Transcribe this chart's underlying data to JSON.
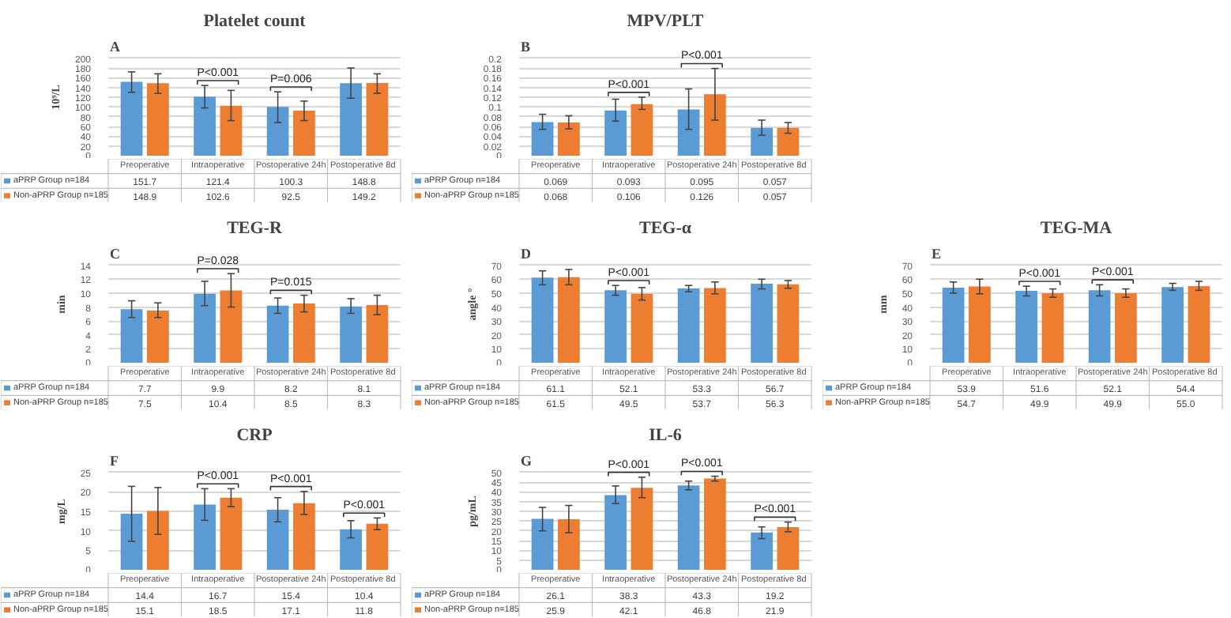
{
  "chart_data": [
    {
      "type": "bar",
      "title": "Platelet count",
      "ylabel": "10⁹/L",
      "categories": [
        "Preoperative",
        "Intraoperative",
        "Postoperative 24h",
        "Postoperative  8d"
      ],
      "series": [
        {
          "name": "aPRP Group n=184",
          "color": "#5b9bd5",
          "values": [
            151.7,
            121.4,
            100.3,
            148.8
          ],
          "errors": [
            [
              130,
              172
            ],
            [
              98,
              144
            ],
            [
              68,
              131
            ],
            [
              118,
              180
            ]
          ]
        },
        {
          "name": "Non-aPRP Group n=185",
          "color": "#ed7d31",
          "values": [
            148.9,
            102.6,
            92.5,
            149.2
          ],
          "errors": [
            [
              128,
              168
            ],
            [
              72,
              134
            ],
            [
              72,
              112
            ],
            [
              128,
              168
            ]
          ]
        }
      ],
      "ylim": [
        0,
        200
      ],
      "yticks": [
        0,
        20,
        40,
        60,
        80,
        100,
        120,
        140,
        160,
        180,
        200
      ],
      "grid": "y",
      "legend": "bottom left",
      "data_labels": true,
      "annotations": [
        "A",
        "P<0.001",
        "P=0.006"
      ]
    },
    {
      "type": "bar",
      "title": "MPV/PLT",
      "categories": [
        "Preoperative",
        "Intraoperative",
        "Postoperative 24h",
        "Postoperative  8d"
      ],
      "series": [
        {
          "name": "aPRP Group n=184",
          "color": "#5b9bd5",
          "values": [
            0.069,
            0.093,
            0.095,
            0.057
          ],
          "errors": [
            [
              0.054,
              0.085
            ],
            [
              0.071,
              0.116
            ],
            [
              0.054,
              0.137
            ],
            [
              0.042,
              0.073
            ]
          ]
        },
        {
          "name": "Non-aPRP Group n=185",
          "color": "#ed7d31",
          "values": [
            0.068,
            0.106,
            0.126,
            0.057
          ],
          "errors": [
            [
              0.055,
              0.082
            ],
            [
              0.095,
              0.12
            ],
            [
              0.073,
              0.179
            ],
            [
              0.046,
              0.068
            ]
          ]
        }
      ],
      "ylim": [
        0,
        0.2
      ],
      "yticks": [
        0,
        0.02,
        0.04,
        0.06,
        0.08,
        0.1,
        0.12,
        0.14,
        0.16,
        0.18,
        0.2
      ],
      "grid": "y",
      "legend": "bottom left",
      "data_labels": true,
      "annotations": [
        "B",
        "P<0.001",
        "P<0.001"
      ]
    },
    {
      "type": "bar",
      "title": "TEG-R",
      "ylabel": "min",
      "categories": [
        "Preoperative",
        "Intraoperative",
        "Postoperative 24h",
        "Postoperative  8d"
      ],
      "series": [
        {
          "name": "aPRP Group n=184",
          "color": "#5b9bd5",
          "values": [
            7.7,
            9.9,
            8.2,
            8.1
          ],
          "errors": [
            [
              6.5,
              8.9
            ],
            [
              8.2,
              11.7
            ],
            [
              7.1,
              9.3
            ],
            [
              7.1,
              9.2
            ]
          ]
        },
        {
          "name": "Non-aPRP Group n=185",
          "color": "#ed7d31",
          "values": [
            7.5,
            10.4,
            8.5,
            8.3
          ],
          "errors": [
            [
              6.5,
              8.6
            ],
            [
              8,
              12.8
            ],
            [
              7.3,
              9.7
            ],
            [
              6.9,
              9.7
            ]
          ]
        }
      ],
      "ylim": [
        0,
        14
      ],
      "yticks": [
        0,
        2,
        4,
        6,
        8,
        10,
        12,
        14
      ],
      "grid": "y",
      "legend": "bottom left",
      "data_labels": true,
      "annotations": [
        "C",
        "P=0.028",
        "P=0.015"
      ]
    },
    {
      "type": "bar",
      "title": "TEG-α",
      "ylabel": "angle °",
      "categories": [
        "Preoperative",
        "Intraoperative",
        "Postoperative 24h",
        "Postoperative  8d"
      ],
      "series": [
        {
          "name": "aPRP Group n=184",
          "color": "#5b9bd5",
          "values": [
            61.1,
            52.1,
            53.3,
            56.7
          ],
          "errors": [
            [
              56,
              66
            ],
            [
              48.5,
              55.5
            ],
            [
              51,
              55.5
            ],
            [
              53,
              60
            ]
          ]
        },
        {
          "name": "Non-aPRP Group n=185",
          "color": "#ed7d31",
          "values": [
            61.5,
            49.5,
            53.7,
            56.3
          ],
          "errors": [
            [
              56,
              67
            ],
            [
              45,
              54
            ],
            [
              49.5,
              58
            ],
            [
              53.5,
              59
            ]
          ]
        }
      ],
      "ylim": [
        0,
        70
      ],
      "yticks": [
        0,
        10,
        20,
        30,
        40,
        50,
        60,
        70
      ],
      "grid": "y",
      "legend": "bottom left",
      "data_labels": true,
      "annotations": [
        "D",
        "P<0.001"
      ]
    },
    {
      "type": "bar",
      "title": "TEG-MA",
      "ylabel": "mm",
      "categories": [
        "Preoperative",
        "Intraoperative",
        "Postoperative 24h",
        "Postoperative  8d"
      ],
      "series": [
        {
          "name": "aPRP Group n=184",
          "color": "#5b9bd5",
          "values": [
            53.9,
            51.6,
            52.1,
            54.4
          ],
          "errors": [
            [
              50,
              58
            ],
            [
              48,
              55
            ],
            [
              48,
              56
            ],
            [
              52,
              57
            ]
          ],
          "value_labels": [
            "53.9",
            "51.6",
            "52.1",
            "54.4"
          ]
        },
        {
          "name": "Non-aPRP Group n=185",
          "color": "#ed7d31",
          "values": [
            54.7,
            49.9,
            49.9,
            55.0
          ],
          "errors": [
            [
              49.5,
              60
            ],
            [
              47,
              53
            ],
            [
              47,
              53
            ],
            [
              52,
              58.5
            ]
          ],
          "value_labels": [
            "54.7",
            "49.9",
            "49.9",
            "55.0"
          ]
        }
      ],
      "ylim": [
        0,
        70
      ],
      "yticks": [
        0,
        10,
        20,
        30,
        40,
        50,
        60,
        70
      ],
      "grid": "y",
      "legend": "bottom left",
      "annotations": [
        "E",
        "P<0.001",
        "P<0.001"
      ]
    },
    {
      "type": "bar",
      "title": "CRP",
      "ylabel": "mg/L",
      "categories": [
        "Preoperative",
        "Intraoperative",
        "Postoperative 24h",
        "Postoperative  8d"
      ],
      "series": [
        {
          "name": "aPRP Group n=184",
          "color": "#5b9bd5",
          "values": [
            14.4,
            16.7,
            15.4,
            10.4
          ],
          "errors": [
            [
              7.3,
              21.4
            ],
            [
              12.7,
              20.8
            ],
            [
              12.3,
              18.5
            ],
            [
              8.2,
              12.6
            ]
          ]
        },
        {
          "name": "Non-aPRP Group n=185",
          "color": "#ed7d31",
          "values": [
            15.1,
            18.5,
            17.1,
            11.8
          ],
          "errors": [
            [
              9.1,
              21.1
            ],
            [
              16.2,
              20.8
            ],
            [
              14.2,
              20.1
            ],
            [
              10.3,
              13.3
            ]
          ]
        }
      ],
      "ylim": [
        0,
        25
      ],
      "yticks": [
        0,
        5,
        10,
        15,
        20,
        25
      ],
      "grid": "y",
      "legend": "bottom left",
      "data_labels": true,
      "annotations": [
        "F",
        "P<0.001",
        "P<0.001",
        "P<0.001"
      ]
    },
    {
      "type": "bar",
      "title": "IL-6",
      "ylabel": "pg/mL",
      "categories": [
        "Preoperative",
        "Intraoperative",
        "Postoperative 24h",
        "Postoperative  8d"
      ],
      "series": [
        {
          "name": "aPRP Group n=184",
          "color": "#5b9bd5",
          "values": [
            26.1,
            38.3,
            43.3,
            19.2
          ],
          "errors": [
            [
              20,
              32
            ],
            [
              34,
              43
            ],
            [
              41,
              45.5
            ],
            [
              16,
              22
            ]
          ]
        },
        {
          "name": "Non-aPRP Group n=185",
          "color": "#ed7d31",
          "values": [
            25.9,
            42.1,
            46.8,
            21.9
          ],
          "errors": [
            [
              19,
              33
            ],
            [
              37,
              47.5
            ],
            [
              45.5,
              48
            ],
            [
              19.5,
              24.5
            ]
          ]
        }
      ],
      "ylim": [
        0,
        50
      ],
      "yticks": [
        0,
        5,
        10,
        15,
        20,
        25,
        30,
        35,
        40,
        45,
        50
      ],
      "grid": "y",
      "legend": "bottom left",
      "data_labels": true,
      "annotations": [
        "G",
        "P<0.001",
        "P<0.001",
        "P<0.001"
      ]
    }
  ]
}
